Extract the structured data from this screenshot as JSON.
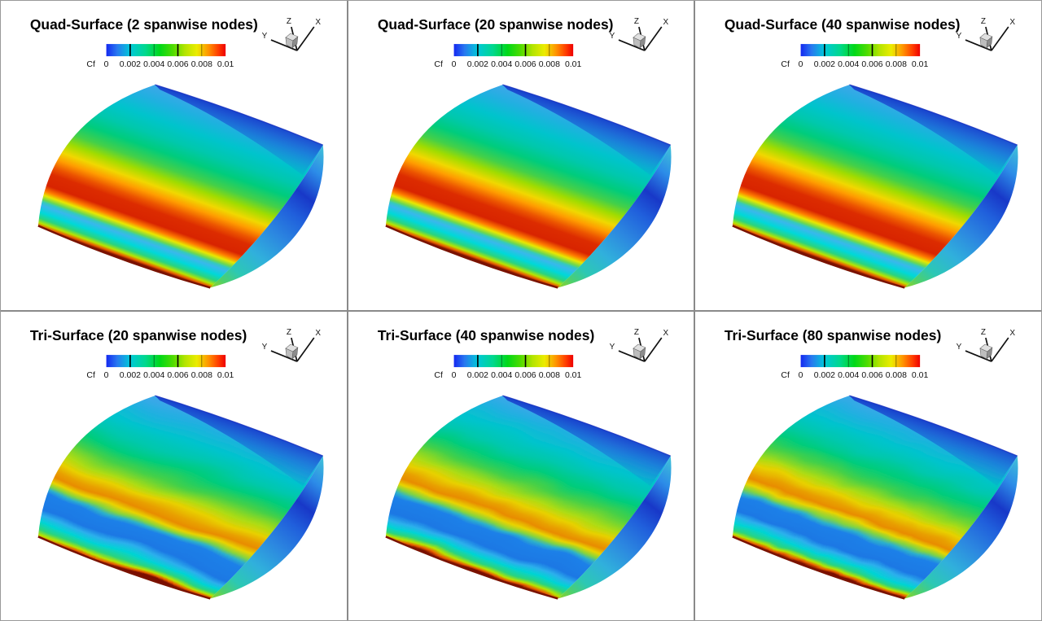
{
  "figure": {
    "background": "#ffffff",
    "divider_color": "#8a8a8a",
    "rows": 2,
    "cols": 3
  },
  "colorbar": {
    "label": "Cf",
    "ticks": [
      "0",
      "0.002",
      "0.004",
      "0.006",
      "0.008",
      "0.01"
    ],
    "min": 0,
    "max": 0.01,
    "colormap_colors": [
      "#1428f0",
      "#00c8d8",
      "#00d818",
      "#b4e400",
      "#ecec00",
      "#ff9000",
      "#ee0000"
    ]
  },
  "axes_triad": {
    "x_label": "X",
    "y_label": "Y",
    "z_label": "Z"
  },
  "panels": [
    {
      "id": "quad-2",
      "type": "quad",
      "title": "Quad-Surface (2 spanwise nodes)",
      "mesh": "quad",
      "spanwise_nodes": 2
    },
    {
      "id": "quad-20",
      "type": "quad",
      "title": "Quad-Surface (20 spanwise nodes)",
      "mesh": "quad",
      "spanwise_nodes": 20
    },
    {
      "id": "quad-40",
      "type": "quad",
      "title": "Quad-Surface (40 spanwise nodes)",
      "mesh": "quad",
      "spanwise_nodes": 40
    },
    {
      "id": "tri-20",
      "type": "tri",
      "title": "Tri-Surface (20 spanwise nodes)",
      "mesh": "tri",
      "spanwise_nodes": 20
    },
    {
      "id": "tri-40",
      "type": "tri",
      "title": "Tri-Surface (40 spanwise nodes)",
      "mesh": "tri",
      "spanwise_nodes": 40
    },
    {
      "id": "tri-80",
      "type": "tri",
      "title": "Tri-Surface (80 spanwise nodes)",
      "mesh": "tri",
      "spanwise_nodes": 80
    }
  ],
  "chart_data": {
    "type": "heatmap",
    "title": "Skin-friction coefficient (Cf) contours on a swept wing upper surface, quad vs tri surface meshes",
    "variable": "Cf",
    "colormap": "rainbow (blue - cyan - green - yellow - orange - red)",
    "value_range": [
      0,
      0.01
    ],
    "colorbar_ticks": [
      0,
      0.002,
      0.004,
      0.006,
      0.008,
      0.01
    ],
    "orientation_axes": [
      "X",
      "Y",
      "Z"
    ],
    "layout": "2 rows x 3 columns of identical wing views",
    "panels": [
      {
        "row": 1,
        "col": 1,
        "title": "Quad-Surface (2 spanwise nodes)",
        "mesh": "quad",
        "spanwise_nodes": 2,
        "surface_pattern": "smooth straight red high-Cf band (~0.01) near leading edge, thin cyan laminar strip below it, green/cyan midchord, dark blue trailing edge, dark-red attachment line, blue tip section"
      },
      {
        "row": 1,
        "col": 2,
        "title": "Quad-Surface (20 spanwise nodes)",
        "mesh": "quad",
        "spanwise_nodes": 20,
        "surface_pattern": "smooth straight red high-Cf band near leading edge, same as 2-node quad result"
      },
      {
        "row": 1,
        "col": 3,
        "title": "Quad-Surface (40 spanwise nodes)",
        "mesh": "quad",
        "spanwise_nodes": 40,
        "surface_pattern": "smooth straight red high-Cf band near leading edge, same as other quad results"
      },
      {
        "row": 2,
        "col": 1,
        "title": "Tri-Surface (20 spanwise nodes)",
        "mesh": "tri",
        "spanwise_nodes": 20,
        "surface_pattern": "wavy orange transition band (~0.007-0.008) with wide royal-blue laminar region between band and leading edge"
      },
      {
        "row": 2,
        "col": 2,
        "title": "Tri-Surface (40 spanwise nodes)",
        "mesh": "tri",
        "spanwise_nodes": 40,
        "surface_pattern": "wavy orange transition band, slightly smoother than 20-node tri result"
      },
      {
        "row": 2,
        "col": 3,
        "title": "Tri-Surface (80 spanwise nodes)",
        "mesh": "tri",
        "spanwise_nodes": 80,
        "surface_pattern": "mildly wavy orange transition band, smoothest of the tri results"
      }
    ]
  }
}
